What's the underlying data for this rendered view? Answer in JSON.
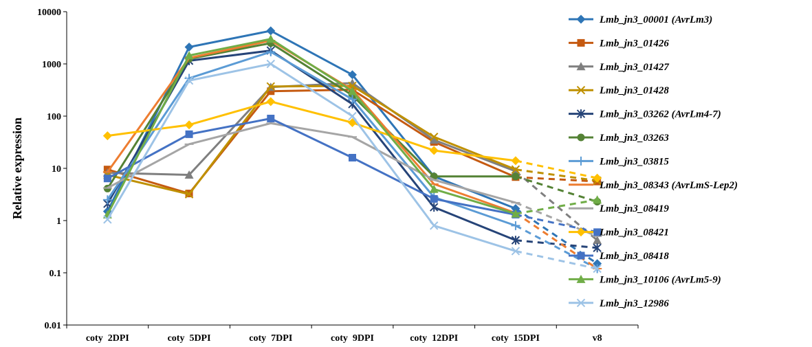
{
  "chart_data": {
    "type": "line",
    "ylabel": "Relative expression",
    "xlabel": "",
    "yscale": "log",
    "ylim": [
      0.01,
      10000
    ],
    "yticks": [
      "0.01",
      "0.1",
      "1",
      "10",
      "100",
      "1000",
      "10000"
    ],
    "categories": [
      "coty  2DPI",
      "coty  5DPI",
      "coty  7DPI",
      "coty  9DPI",
      "coty  12DPI",
      "coty  15DPI",
      "v8"
    ],
    "grid": false,
    "legend_position": "right",
    "last_segment_style": "dashed",
    "series": [
      {
        "name": "Lmb_jn3_00001 (AvrLm3)",
        "color": "#2E75B6",
        "marker": "diamond",
        "values": [
          1.5,
          2100,
          4300,
          620,
          7,
          1.7,
          0.15
        ]
      },
      {
        "name": "Lmb_jn3_01426",
        "color": "#C55A11",
        "marker": "square",
        "values": [
          9.5,
          3.3,
          300,
          320,
          32,
          6.8,
          5.6
        ]
      },
      {
        "name": "Lmb_jn3_01427",
        "color": "#7F7F7F",
        "marker": "triangle",
        "values": [
          8.2,
          7.5,
          360,
          430,
          35,
          8.8,
          0.42
        ]
      },
      {
        "name": "Lmb_jn3_01428",
        "color": "#BF9000",
        "marker": "x",
        "values": [
          7.5,
          3.2,
          370,
          380,
          40,
          9.5,
          5.8
        ]
      },
      {
        "name": "Lmb_jn3_03262 (AvrLm4-7)",
        "color": "#264478",
        "marker": "star",
        "values": [
          2.1,
          1150,
          1800,
          170,
          1.8,
          0.42,
          0.3
        ]
      },
      {
        "name": "Lmb_jn3_03263",
        "color": "#548235",
        "marker": "circle",
        "values": [
          4.1,
          1250,
          2500,
          250,
          7,
          7,
          2.3
        ]
      },
      {
        "name": "Lmb_jn3_03815",
        "color": "#5B9BD5",
        "marker": "plus",
        "values": [
          2.5,
          530,
          1700,
          210,
          2.8,
          0.8,
          0.12
        ]
      },
      {
        "name": "Lmb_jn3_08343 (AvrLmS-Lep2)",
        "color": "#ED7D31",
        "marker": "dash",
        "values": [
          8.5,
          1300,
          2800,
          320,
          5,
          1.4,
          0.12
        ]
      },
      {
        "name": "Lmb_jn3_08419",
        "color": "#A5A5A5",
        "marker": "dash",
        "values": [
          4.2,
          29,
          73,
          40,
          6,
          2.2,
          0.5
        ]
      },
      {
        "name": "Lmb_jn3_08421",
        "color": "#FFC000",
        "marker": "diamond",
        "values": [
          42,
          68,
          190,
          75,
          22,
          14,
          6.5
        ]
      },
      {
        "name": "Lmb_jn3_08418",
        "color": "#4472C4",
        "marker": "square",
        "values": [
          6.4,
          45,
          90,
          16,
          2.6,
          1.3,
          0.6
        ]
      },
      {
        "name": "Lmb_jn3_10106 (AvrLm5-9)",
        "color": "#70AD47",
        "marker": "triangle",
        "values": [
          1.3,
          1450,
          3000,
          300,
          4,
          1.35,
          2.5
        ]
      },
      {
        "name": "Lmb_jn3_12986",
        "color": "#9DC3E6",
        "marker": "x",
        "values": [
          1.05,
          480,
          1000,
          100,
          0.8,
          0.26,
          0.12
        ]
      }
    ]
  }
}
